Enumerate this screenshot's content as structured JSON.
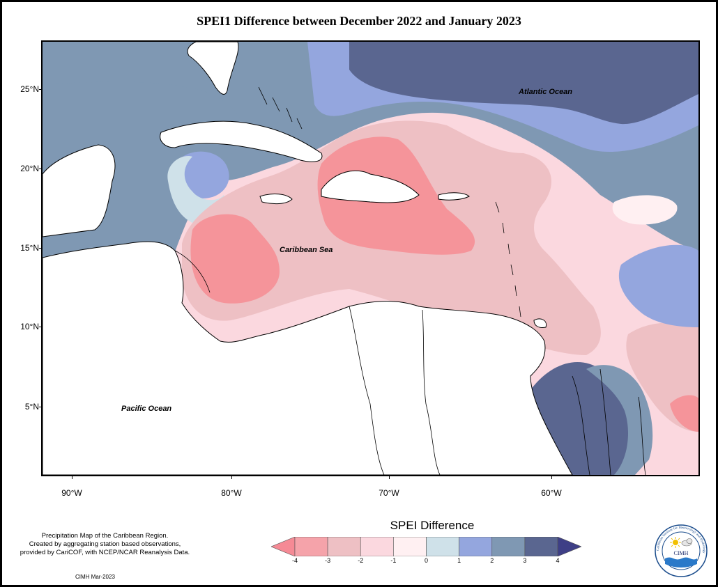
{
  "title": "SPEI1 Difference between December 2022 and January 2023",
  "map": {
    "ocean_labels": {
      "atlantic": "Atlantic Ocean",
      "caribbean": "Caribbean Sea",
      "pacific": "Pacific Ocean"
    },
    "lat_ticks": [
      "25°N",
      "20°N",
      "15°N",
      "10°N",
      "5°N"
    ],
    "lon_ticks": [
      "90°W",
      "80°W",
      "70°W",
      "60°W"
    ],
    "colors": {
      "lt_-3": "#f5949a",
      "-3_-2": "#eec0c4",
      "-2_-1": "#fbd8df",
      "-1_0": "#fff0f2",
      "0_1": "#cfe1e9",
      "1_2": "#94a6de",
      "2_3": "#7f98b3",
      "gt_3": "#5a6690",
      "land": "#ffffff"
    }
  },
  "legend": {
    "title": "SPEI Difference",
    "labels": [
      "-4",
      "-3",
      "-2",
      "-1",
      "0",
      "1",
      "2",
      "3",
      "4"
    ],
    "colors": [
      "#f58a95",
      "#f5a3aa",
      "#eec0c4",
      "#fbd8df",
      "#fff0f2",
      "#cfe1e9",
      "#94a6de",
      "#7f98b3",
      "#5a6690",
      "#3e3f86"
    ]
  },
  "notes": {
    "line1": "Precipitation Map of the Caribbean Region.",
    "line2": "Created by aggregating station based observations,",
    "line3": "provided by CariCOF, with NCEP/NCAR Reanalysis Data.",
    "credit": "CIMH Mar-2023"
  },
  "logo": {
    "text": "CIMH",
    "ring_text": "Caribbean Institute for Meteorology and Hydrology"
  }
}
